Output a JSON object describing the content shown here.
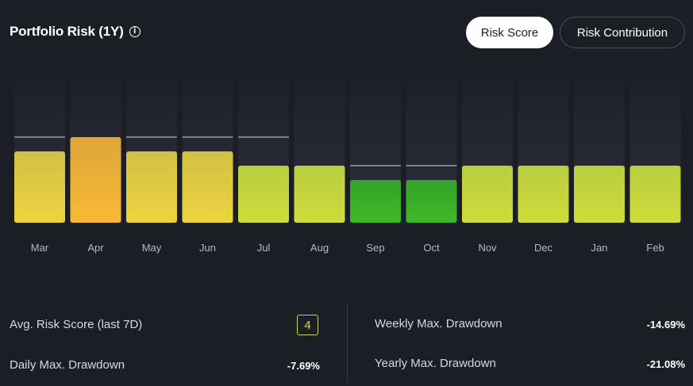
{
  "header": {
    "title": "Portfolio Risk (1Y)",
    "info_icon": "info-icon"
  },
  "tabs": [
    {
      "label": "Risk Score",
      "active": true
    },
    {
      "label": "Risk Contribution",
      "active": false
    }
  ],
  "chart_data": {
    "type": "bar",
    "title": "Portfolio Risk (1Y)",
    "categories": [
      "Mar",
      "Apr",
      "May",
      "Jun",
      "Jul",
      "Aug",
      "Sep",
      "Oct",
      "Nov",
      "Dec",
      "Jan",
      "Feb"
    ],
    "values": [
      5,
      6,
      5,
      5,
      4,
      4,
      3,
      3,
      4,
      4,
      4,
      4
    ],
    "markers": [
      6,
      null,
      6,
      6,
      6,
      null,
      4,
      4,
      null,
      null,
      null,
      null
    ],
    "ylim": [
      0,
      10
    ],
    "xlabel": "",
    "ylabel": "",
    "grid": false,
    "colors": {
      "track": "#2a2d38",
      "high": "#f5b731",
      "mid": "#e8cf44",
      "low_mid": "#c4d63d",
      "low": "#3aa829",
      "marker": "#cfd6e8",
      "tick": "#b8bac2"
    }
  },
  "stats": {
    "avg_risk_label": "Avg. Risk Score (last 7D)",
    "avg_risk_value": "4",
    "daily_dd_label": "Daily Max. Drawdown",
    "daily_dd_value": "-7.69%",
    "weekly_dd_label": "Weekly Max. Drawdown",
    "weekly_dd_value": "-14.69%",
    "yearly_dd_label": "Yearly Max. Drawdown",
    "yearly_dd_value": "-21.08%"
  }
}
